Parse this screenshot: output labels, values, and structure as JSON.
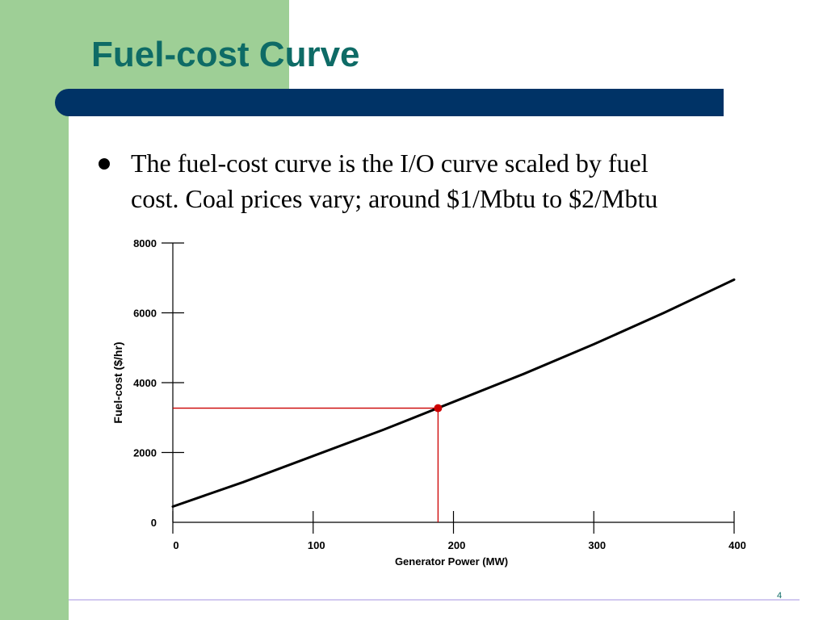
{
  "slide": {
    "title": "Fuel-cost Curve",
    "bullet_lines": [
      "The fuel-cost curve is the I/O curve scaled by fuel",
      "cost.  Coal prices vary; around $1/Mbtu to $2/Mbtu"
    ],
    "page_number": "4"
  },
  "colors": {
    "title": "#0e6b66",
    "title_bar": "#003366",
    "accent_green": "#9ecf96",
    "curve": "#000000",
    "marker": "#cc0000"
  },
  "chart_data": {
    "type": "line",
    "xlabel": "Generator Power (MW)",
    "ylabel": "Fuel-cost ($/hr)",
    "xlim": [
      0,
      400
    ],
    "ylim": [
      0,
      8000
    ],
    "x_ticks": [
      0,
      100,
      200,
      300,
      400
    ],
    "y_ticks": [
      0,
      2000,
      4000,
      6000,
      8000
    ],
    "grid": false,
    "series": [
      {
        "x": [
          0,
          50,
          100,
          150,
          200,
          250,
          300,
          350,
          400
        ],
        "values": [
          450,
          1150,
          1900,
          2650,
          3450,
          4250,
          5100,
          6000,
          6950
        ]
      }
    ],
    "highlight_point": {
      "x": 189,
      "y": 3270
    }
  }
}
